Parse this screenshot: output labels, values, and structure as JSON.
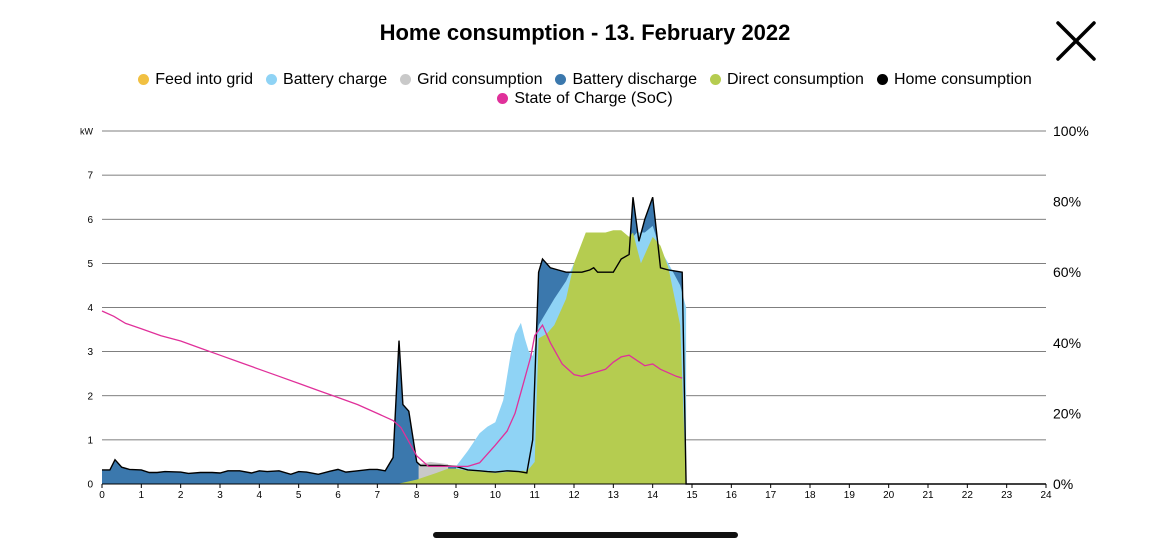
{
  "header": {
    "title": "Home consumption - 13. February 2022",
    "close_icon": "close-icon"
  },
  "colors": {
    "feed_into_grid": "#f1c042",
    "battery_charge": "#8fd3f5",
    "grid_consumption": "#c9c9c9",
    "battery_discharge": "#3b78ad",
    "direct_consumption": "#b5cc50",
    "home_consumption": "#000000",
    "soc": "#e0309a"
  },
  "chart_data": {
    "type": "area",
    "title": "Home consumption - 13. February 2022",
    "ylabel": "kW",
    "ylim": [
      0,
      8
    ],
    "y2lim": [
      0,
      100
    ],
    "xlim": [
      0,
      24
    ],
    "legend_position": "top-center",
    "grid": true,
    "x_ticks": [
      "0",
      "1",
      "2",
      "3",
      "4",
      "5",
      "6",
      "7",
      "8",
      "9",
      "10",
      "11",
      "12",
      "13",
      "14",
      "15",
      "16",
      "17",
      "18",
      "19",
      "20",
      "21",
      "22",
      "23",
      "24"
    ],
    "y_ticks": [
      "0",
      "1",
      "2",
      "3",
      "4",
      "5",
      "6",
      "7"
    ],
    "y2_ticks": [
      "0%",
      "20%",
      "40%",
      "60%",
      "80%",
      "100%"
    ],
    "legend": [
      {
        "name": "Feed into grid",
        "color": "#f1c042"
      },
      {
        "name": "Battery charge",
        "color": "#8fd3f5"
      },
      {
        "name": "Grid consumption",
        "color": "#c9c9c9"
      },
      {
        "name": "Battery discharge",
        "color": "#3b78ad"
      },
      {
        "name": "Direct consumption",
        "color": "#b5cc50"
      },
      {
        "name": "Home consumption",
        "color": "#000000"
      },
      {
        "name": "State of Charge (SoC)",
        "color": "#e0309a"
      }
    ],
    "series": [
      {
        "name": "Home consumption",
        "kind": "line",
        "x": [
          0,
          0.2,
          0.33,
          0.5,
          0.7,
          1,
          1.2,
          1.4,
          1.6,
          2,
          2.2,
          2.5,
          2.8,
          3,
          3.2,
          3.5,
          3.8,
          4,
          4.2,
          4.5,
          4.8,
          5,
          5.2,
          5.5,
          5.8,
          6,
          6.2,
          6.5,
          6.8,
          7,
          7.2,
          7.4,
          7.55,
          7.65,
          7.8,
          8,
          8.1,
          8.3,
          8.6,
          9,
          9.3,
          9.6,
          9.8,
          10,
          10.3,
          10.6,
          10.8,
          10.95,
          11.1,
          11.2,
          11.4,
          11.6,
          11.8,
          12,
          12.2,
          12.4,
          12.5,
          12.6,
          12.8,
          13,
          13.2,
          13.4,
          13.5,
          13.65,
          13.8,
          14,
          14.2,
          14.4,
          14.75,
          14.85,
          15,
          24
        ],
        "y": [
          0.32,
          0.32,
          0.55,
          0.38,
          0.33,
          0.32,
          0.26,
          0.26,
          0.28,
          0.27,
          0.24,
          0.26,
          0.26,
          0.25,
          0.3,
          0.3,
          0.25,
          0.3,
          0.28,
          0.3,
          0.22,
          0.28,
          0.27,
          0.22,
          0.29,
          0.33,
          0.27,
          0.3,
          0.33,
          0.33,
          0.3,
          0.6,
          3.25,
          1.8,
          1.65,
          0.5,
          0.42,
          0.42,
          0.42,
          0.4,
          0.32,
          0.3,
          0.28,
          0.27,
          0.3,
          0.28,
          0.25,
          1.0,
          4.8,
          5.1,
          4.9,
          4.85,
          4.8,
          4.8,
          4.8,
          4.85,
          4.9,
          4.8,
          4.8,
          4.8,
          5.1,
          5.2,
          6.5,
          5.5,
          6.0,
          6.5,
          4.9,
          4.85,
          4.8,
          0,
          0,
          0
        ]
      },
      {
        "name": "Direct consumption",
        "kind": "area",
        "x": [
          0,
          7.5,
          8,
          8.5,
          8.8,
          9,
          9.3,
          9.6,
          10,
          10.4,
          10.7,
          10.8,
          11,
          11.1,
          11.3,
          11.5,
          11.8,
          12,
          12.3,
          12.5,
          12.8,
          13,
          13.2,
          13.4,
          13.5,
          13.7,
          13.9,
          14,
          14.2,
          14.4,
          14.7,
          14.85,
          15,
          24
        ],
        "y": [
          0,
          0,
          0.1,
          0.25,
          0.35,
          0.35,
          0.3,
          0.28,
          0.25,
          0.28,
          0.3,
          0.28,
          0.5,
          3.3,
          3.4,
          3.6,
          4.2,
          5.0,
          5.7,
          5.7,
          5.7,
          5.75,
          5.75,
          5.6,
          5.7,
          5.0,
          5.4,
          5.6,
          5.4,
          4.9,
          3.6,
          0,
          0,
          0
        ]
      },
      {
        "name": "Battery charge",
        "kind": "area",
        "x": [
          9,
          9.3,
          9.6,
          9.8,
          10,
          10.2,
          10.4,
          10.5,
          10.65,
          10.75,
          10.85,
          10.95,
          11,
          11.1,
          11.3,
          11.5,
          11.8,
          12,
          12.4,
          12.6,
          12.8,
          13,
          13.2,
          13.4,
          13.6,
          13.8,
          14,
          14.2,
          14.4,
          14.7,
          14.85
        ],
        "y": [
          0.4,
          0.75,
          1.15,
          1.3,
          1.4,
          1.9,
          3.0,
          3.4,
          3.65,
          3.3,
          3.0,
          2.9,
          3.1,
          3.6,
          3.9,
          4.2,
          4.6,
          5.0,
          5.15,
          5.0,
          5.3,
          5.35,
          5.2,
          5.5,
          5.7,
          5.7,
          5.85,
          5.3,
          5.0,
          4.5,
          4.0
        ]
      },
      {
        "name": "State of Charge (SoC)",
        "kind": "line",
        "axis": "right",
        "x": [
          0,
          0.3,
          0.6,
          1,
          1.5,
          2,
          2.5,
          3,
          3.5,
          4,
          4.5,
          5,
          5.5,
          6,
          6.5,
          7,
          7.4,
          7.6,
          7.8,
          8,
          8.3,
          8.6,
          9,
          9.3,
          9.6,
          10,
          10.3,
          10.5,
          10.7,
          10.9,
          11,
          11.2,
          11.4,
          11.7,
          12,
          12.2,
          12.5,
          12.8,
          13,
          13.2,
          13.4,
          13.6,
          13.8,
          14,
          14.2,
          14.4,
          14.6,
          14.75
        ],
        "y": [
          49,
          47.5,
          45.5,
          44,
          42,
          40.5,
          38.5,
          36.5,
          34.5,
          32.5,
          30.5,
          28.5,
          26.5,
          24.5,
          22.5,
          20,
          18,
          16,
          12,
          8,
          5,
          5,
          5,
          5,
          6,
          11,
          15,
          20,
          28,
          36,
          42,
          45,
          40,
          34,
          31,
          30.5,
          31.5,
          32.5,
          34.5,
          36,
          36.5,
          35,
          33.5,
          34,
          32.5,
          31.5,
          30.5,
          30
        ]
      }
    ]
  }
}
